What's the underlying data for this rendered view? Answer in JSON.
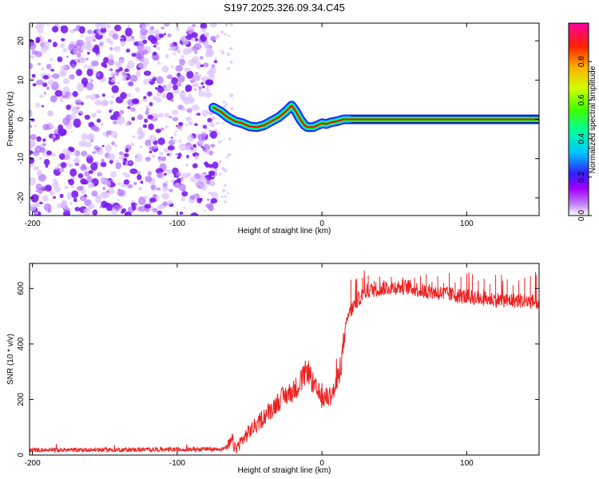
{
  "figure_title": "S197.2025.326.09.34.C45",
  "chart_data": [
    {
      "type": "heatmap",
      "name": "spectrogram",
      "title": "S197.2025.326.09.34.C45",
      "xlabel": "Height of straight line (km)",
      "ylabel": "Frequency (Hz)",
      "xlim": [
        -202,
        150
      ],
      "ylim": [
        -24.5,
        24.5
      ],
      "xticks": [
        -200,
        -100,
        0,
        100
      ],
      "yticks": [
        -20,
        -10,
        0,
        10,
        20
      ],
      "noise_region_x": [
        -202,
        -73
      ],
      "signal_start_x": -75,
      "signal_ridge": {
        "x": [
          -75,
          -70,
          -65,
          -60,
          -55,
          -50,
          -45,
          -40,
          -35,
          -30,
          -25,
          -21,
          -18,
          -15,
          -12,
          -10,
          -6,
          -3,
          0,
          3,
          6,
          10,
          15,
          20,
          40,
          60,
          80,
          100,
          120,
          150
        ],
        "freq_hz": [
          3,
          2,
          0.5,
          -0.5,
          -1,
          -1.8,
          -2,
          -1.5,
          -0.5,
          0.5,
          2,
          3.5,
          2,
          0,
          -1.5,
          -2,
          -2,
          -1.5,
          -1,
          -1.2,
          -0.8,
          -0.5,
          0,
          0,
          0,
          0,
          0,
          0,
          0,
          0
        ]
      },
      "colorbar": {
        "label": "Normalized spectral amplitude",
        "ticks": [
          0.0,
          0.2,
          0.4,
          0.6,
          0.8
        ],
        "tick_labels": [
          "0.0",
          "0.2",
          "0.4",
          "0.6",
          "0.8"
        ],
        "range": [
          0,
          1
        ],
        "colors": [
          "#ffffff",
          "#b000ff",
          "#2020ff",
          "#00d0ff",
          "#00ff40",
          "#c0ff00",
          "#ffcc00",
          "#ff6000",
          "#ff0000",
          "#ff00a0"
        ]
      },
      "ridge_colors": [
        "#2020ff",
        "#00d0ff",
        "#00ff40",
        "#ff0000"
      ],
      "noise_color": "#8a2be2"
    },
    {
      "type": "line",
      "name": "snr",
      "xlabel": "Height of straight line (km)",
      "ylabel": "SNR (10 * v/v)",
      "xlim": [
        -202,
        150
      ],
      "ylim": [
        0,
        690
      ],
      "xticks": [
        -200,
        -100,
        0,
        100
      ],
      "yticks": [
        0,
        200,
        400,
        600
      ],
      "series": [
        {
          "name": "SNR",
          "color": "#ee2222",
          "x": [
            -202,
            -180,
            -160,
            -140,
            -120,
            -100,
            -80,
            -68,
            -64,
            -62,
            -60,
            -55,
            -50,
            -45,
            -40,
            -35,
            -30,
            -25,
            -20,
            -15,
            -12,
            -10,
            -8,
            -5,
            0,
            5,
            8,
            10,
            12,
            14,
            16,
            18,
            20,
            25,
            30,
            40,
            50,
            60,
            70,
            80,
            100,
            120,
            140,
            150
          ],
          "values": [
            18,
            18,
            19,
            19,
            20,
            20,
            21,
            22,
            35,
            55,
            20,
            55,
            85,
            110,
            140,
            165,
            195,
            215,
            230,
            260,
            290,
            310,
            280,
            240,
            205,
            210,
            230,
            250,
            300,
            360,
            440,
            500,
            520,
            560,
            590,
            600,
            605,
            605,
            590,
            585,
            570,
            560,
            555,
            550
          ]
        }
      ],
      "spikes": {
        "x_start": 20,
        "x_end": 150,
        "every_km": 4,
        "top_values": [
          660,
          655,
          650,
          660,
          645,
          665,
          650,
          660,
          640,
          655
        ]
      }
    }
  ]
}
